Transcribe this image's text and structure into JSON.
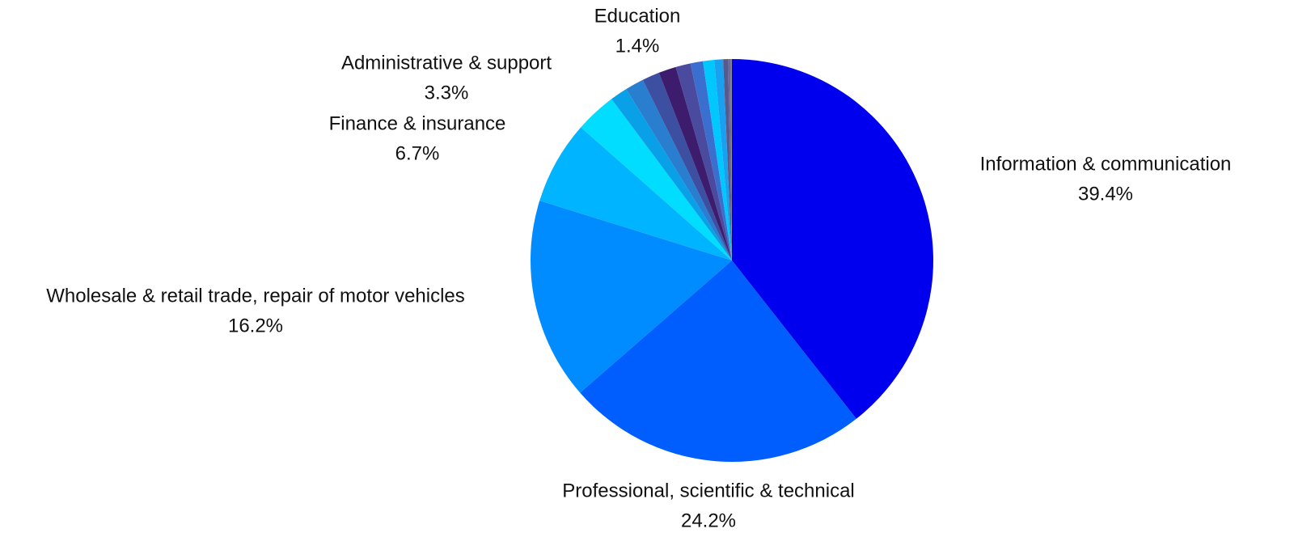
{
  "chart_data": {
    "type": "pie",
    "categories": [
      "Information & communication",
      "Professional, scientific & technical",
      "Wholesale & retail trade, repair of motor vehicles",
      "Finance & insurance",
      "Administrative & support",
      null,
      null,
      null,
      "Education",
      null,
      null,
      null,
      null,
      null,
      null,
      null
    ],
    "values": [
      39.4,
      24.2,
      16.2,
      6.7,
      3.3,
      1.4,
      1.5,
      1.4,
      1.4,
      1.2,
      1.0,
      0.9,
      0.7,
      0.4,
      0.2,
      0.1
    ],
    "value_labels": [
      "39.4%",
      "24.2%",
      "16.2%",
      "6.7%",
      "3.3%",
      null,
      null,
      null,
      "1.4%",
      null,
      null,
      null,
      null,
      null,
      null,
      null
    ],
    "colors": [
      "#0000ee",
      "#005eff",
      "#008cff",
      "#00b4ff",
      "#00ddff",
      "#0aa0e8",
      "#2a7ed0",
      "#3c4fa0",
      "#3d1c6e",
      "#4a4a9e",
      "#3a6fd0",
      "#00c8ff",
      "#1aa0f0",
      "#5a5a8a",
      "#6a6aa0",
      "#888888"
    ]
  }
}
